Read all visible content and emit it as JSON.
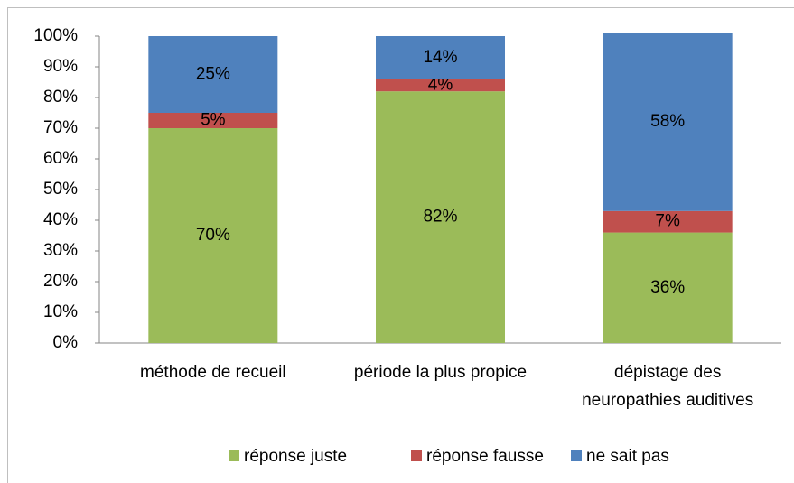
{
  "chart_data": {
    "type": "stacked_bar",
    "categories": [
      "méthode de recueil",
      "période la plus propice",
      "dépistage des\nneuropathies auditives"
    ],
    "series": [
      {
        "name": "réponse juste",
        "color": "#9bbb59",
        "values": [
          70,
          82,
          36
        ],
        "value_labels": [
          "70%",
          "82%",
          "36%"
        ]
      },
      {
        "name": "réponse fausse",
        "color": "#c0504d",
        "values": [
          5,
          4,
          7
        ],
        "value_labels": [
          "5%",
          "4%",
          "7%"
        ]
      },
      {
        "name": "ne sait pas",
        "color": "#4f81bd",
        "values": [
          25,
          14,
          58
        ],
        "value_labels": [
          "25%",
          "14%",
          "58%"
        ]
      }
    ],
    "ylim": [
      0,
      100
    ],
    "yticks": [
      {
        "value": 0,
        "label": "0%"
      },
      {
        "value": 10,
        "label": "10%"
      },
      {
        "value": 20,
        "label": "20%"
      },
      {
        "value": 30,
        "label": "30%"
      },
      {
        "value": 40,
        "label": "40%"
      },
      {
        "value": 50,
        "label": "50%"
      },
      {
        "value": 60,
        "label": "60%"
      },
      {
        "value": 70,
        "label": "70%"
      },
      {
        "value": 80,
        "label": "80%"
      },
      {
        "value": 90,
        "label": "90%"
      },
      {
        "value": 100,
        "label": "100%"
      }
    ],
    "legend": "bottom"
  }
}
